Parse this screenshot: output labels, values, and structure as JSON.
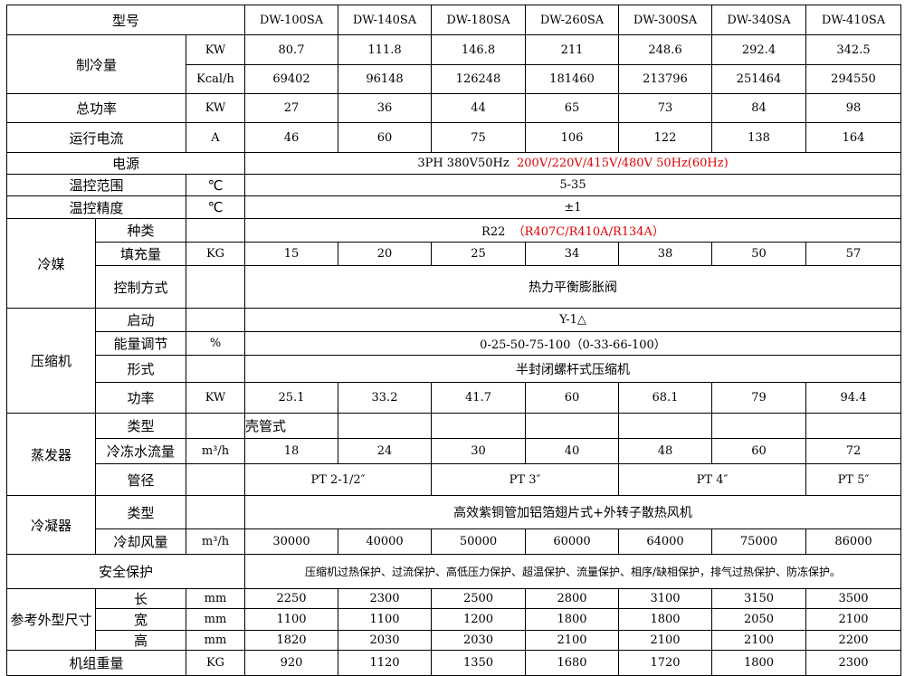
{
  "header": {
    "label": "型号",
    "models": [
      "DW-100SA",
      "DW-140SA",
      "DW-180SA",
      "DW-260SA",
      "DW-300SA",
      "DW-340SA",
      "DW-410SA"
    ]
  },
  "cooling_capacity": {
    "label": "制冷量",
    "kw": {
      "unit": "KW",
      "values": [
        "80.7",
        "111.8",
        "146.8",
        "211",
        "248.6",
        "292.4",
        "342.5"
      ]
    },
    "kcal": {
      "unit": "Kcal/h",
      "values": [
        "69402",
        "96148",
        "126248",
        "181460",
        "213796",
        "251464",
        "294550"
      ]
    }
  },
  "total_power": {
    "label": "总功率",
    "unit": "KW",
    "values": [
      "27",
      "36",
      "44",
      "65",
      "73",
      "84",
      "98"
    ]
  },
  "current": {
    "label": "运行电流",
    "unit": "A",
    "values": [
      "46",
      "60",
      "75",
      "106",
      "122",
      "138",
      "164"
    ]
  },
  "power_supply": {
    "label": "电源",
    "value": "3PH 380V50Hz",
    "value_alt": "200V/220V/415V/480V  50Hz(60Hz)"
  },
  "temp_range": {
    "label": "温控范围",
    "unit": "℃",
    "value": "5-35"
  },
  "temp_precision": {
    "label": "温控精度",
    "unit": "℃",
    "value": "±1"
  },
  "refrigerant": {
    "label": "冷媒",
    "type": {
      "label": "种类",
      "value": "R22",
      "value_alt": "（R407C/R410A/R134A）"
    },
    "charge": {
      "label": "填充量",
      "unit": "KG",
      "values": [
        "15",
        "20",
        "25",
        "34",
        "38",
        "50",
        "57"
      ]
    },
    "control": {
      "label": "控制方式",
      "value": "热力平衡膨胀阀"
    }
  },
  "compressor": {
    "label": "压缩机",
    "start": {
      "label": "启动",
      "value": "Y-1△"
    },
    "capacity_control": {
      "label": "能量调节",
      "unit": "%",
      "value": "0-25-50-75-100（0-33-66-100）"
    },
    "form": {
      "label": "形式",
      "value": "半封闭螺杆式压缩机"
    },
    "power": {
      "label": "功率",
      "unit": "KW",
      "values": [
        "25.1",
        "33.2",
        "41.7",
        "60",
        "68.1",
        "79",
        "94.4"
      ]
    }
  },
  "evaporator": {
    "label": "蒸发器",
    "type": {
      "label": "类型",
      "value": "壳管式"
    },
    "water_flow": {
      "label": "冷冻水流量",
      "unit": "m³/h",
      "values": [
        "18",
        "24",
        "30",
        "40",
        "48",
        "60",
        "72"
      ]
    },
    "pipe": {
      "label": "管径",
      "values": [
        "PT 2-1/2″",
        "PT 3″",
        "PT 4″",
        "PT 5″"
      ]
    }
  },
  "condenser": {
    "label": "冷凝器",
    "type": {
      "label": "类型",
      "value": "高效紫铜管加铝箔翅片式+外转子散热风机"
    },
    "air_flow": {
      "label": "冷却风量",
      "unit": "m³/h",
      "values": [
        "30000",
        "40000",
        "50000",
        "60000",
        "64000",
        "75000",
        "86000"
      ]
    }
  },
  "safety": {
    "label": "安全保护",
    "value": "压缩机过热保护、过流保护、高低压力保护、超温保护、流量保护、相序/缺相保护，排气过热保护、防冻保护。"
  },
  "dimensions": {
    "label": "参考外型尺寸",
    "length": {
      "label": "长",
      "unit": "mm",
      "values": [
        "2250",
        "2300",
        "2500",
        "2800",
        "3100",
        "3150",
        "3500"
      ]
    },
    "width": {
      "label": "宽",
      "unit": "mm",
      "values": [
        "1100",
        "1100",
        "1200",
        "1800",
        "1800",
        "2050",
        "2100"
      ]
    },
    "height": {
      "label": "高",
      "unit": "mm",
      "values": [
        "1820",
        "2030",
        "2030",
        "2100",
        "2100",
        "2100",
        "2200"
      ]
    }
  },
  "weight": {
    "label": "机组重量",
    "unit": "KG",
    "values": [
      "920",
      "1120",
      "1350",
      "1680",
      "1720",
      "1800",
      "2300"
    ]
  },
  "colors": {
    "text": "#000000",
    "highlight": "#e00000",
    "border": "#000000"
  }
}
